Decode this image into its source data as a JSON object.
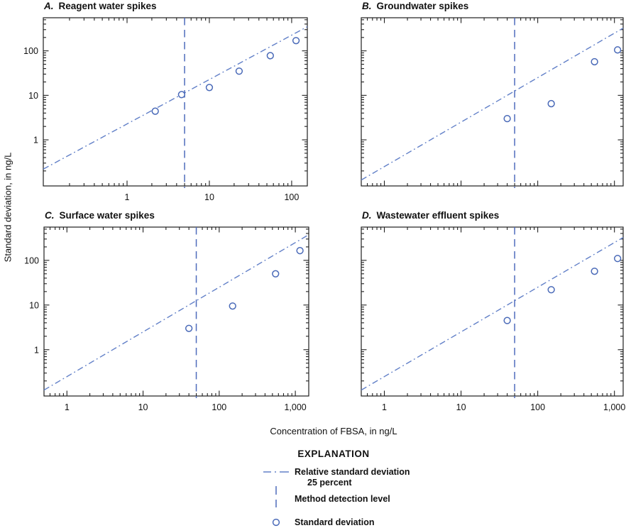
{
  "figure": {
    "x_axis_label": "Concentration of FBSA, in ng/L",
    "y_axis_label": "Standard deviation, in ng/L"
  },
  "colors": {
    "marker_blue": "#4a6ab8",
    "line_blue": "#6280c8",
    "mdl_blue": "#4f6cbc",
    "frame": "#1f1f1f",
    "text": "#111111"
  },
  "legend": {
    "heading": "EXPLANATION",
    "items": [
      {
        "icon": "dash-dot-line",
        "label": "Relative standard deviation",
        "label2": "25 percent"
      },
      {
        "icon": "vertical-dashed-line",
        "label": "Method detection level"
      },
      {
        "icon": "open-circle",
        "label": "Standard deviation"
      }
    ]
  },
  "chart_data": {
    "type": "scatter",
    "scale": "log-log",
    "grid": false,
    "ylim": [
      0.092,
      555
    ],
    "y_tick_values": [
      1,
      10,
      100
    ],
    "y_tick_labels": [
      "1",
      "10",
      "100"
    ],
    "panels": [
      {
        "id": "A",
        "label": "A.",
        "title": "Reagent water spikes",
        "xlim": [
          0.096,
          155
        ],
        "x_tick_values": [
          1,
          10,
          100
        ],
        "x_tick_labels": [
          "1",
          "10",
          "100"
        ],
        "show_x_tick_labels": true,
        "show_y_tick_labels": true,
        "method_detection_level_x": 5,
        "rsd_line": {
          "x": [
            0.096,
            155
          ],
          "y": [
            0.22,
            349
          ]
        },
        "points": {
          "x": [
            2.2,
            4.6,
            10,
            23,
            55,
            113
          ],
          "y": [
            4.4,
            10.4,
            15,
            35,
            78,
            170
          ]
        }
      },
      {
        "id": "B",
        "label": "B.",
        "title": "Groundwater spikes",
        "xlim": [
          0.5,
          1300
        ],
        "x_tick_values": [
          1,
          10,
          100,
          1000
        ],
        "x_tick_labels": [
          "1",
          "10",
          "100",
          "1,000"
        ],
        "show_x_tick_labels": false,
        "show_y_tick_labels": false,
        "method_detection_level_x": 50,
        "rsd_line": {
          "x": [
            0.5,
            1300
          ],
          "y": [
            0.125,
            325
          ]
        },
        "points": {
          "x": [
            40,
            150,
            550,
            1100
          ],
          "y": [
            3,
            6.5,
            57,
            105
          ]
        }
      },
      {
        "id": "C",
        "label": "C.",
        "title": "Surface water spikes",
        "xlim": [
          0.5,
          1500
        ],
        "x_tick_values": [
          1,
          10,
          100,
          1000
        ],
        "x_tick_labels": [
          "1",
          "10",
          "100",
          "1,000"
        ],
        "show_x_tick_labels": true,
        "show_y_tick_labels": true,
        "method_detection_level_x": 50,
        "rsd_line": {
          "x": [
            0.5,
            1500
          ],
          "y": [
            0.125,
            375
          ]
        },
        "points": {
          "x": [
            40,
            150,
            550,
            1150
          ],
          "y": [
            3,
            9.5,
            50,
            165
          ]
        }
      },
      {
        "id": "D",
        "label": "D.",
        "title": "Wastewater effluent spikes",
        "xlim": [
          0.5,
          1300
        ],
        "x_tick_values": [
          1,
          10,
          100,
          1000
        ],
        "x_tick_labels": [
          "1",
          "10",
          "100",
          "1,000"
        ],
        "show_x_tick_labels": true,
        "show_y_tick_labels": false,
        "method_detection_level_x": 50,
        "rsd_line": {
          "x": [
            0.5,
            1300
          ],
          "y": [
            0.125,
            325
          ]
        },
        "points": {
          "x": [
            40,
            150,
            550,
            1100
          ],
          "y": [
            4.5,
            22,
            57,
            110
          ]
        }
      }
    ]
  }
}
